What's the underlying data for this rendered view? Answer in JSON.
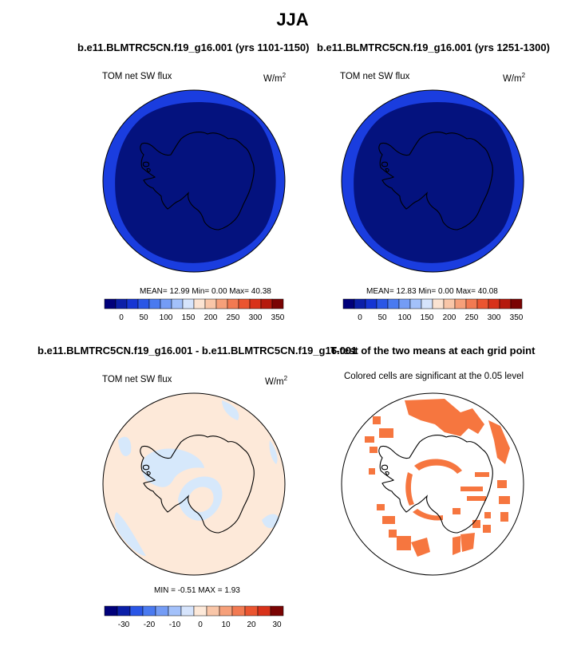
{
  "main_title": "JJA",
  "panels": [
    {
      "title": "b.e11.BLMTRC5CN.f19_g16.001 (yrs 1101-1150)",
      "variable": "TOM net SW flux",
      "units": "W/m",
      "units_sup": "2",
      "stats": "MEAN= 12.99 Min= 0.00 Max= 40.38",
      "colorbar_ticks": [
        "0",
        "50",
        "100",
        "150",
        "200",
        "250",
        "300",
        "350"
      ]
    },
    {
      "title": "b.e11.BLMTRC5CN.f19_g16.001 (yrs 1251-1300)",
      "variable": "TOM net SW flux",
      "units": "W/m",
      "units_sup": "2",
      "stats": "MEAN= 12.83 Min= 0.00 Max= 40.08",
      "colorbar_ticks": [
        "0",
        "50",
        "100",
        "150",
        "200",
        "250",
        "300",
        "350"
      ]
    },
    {
      "title": "b.e11.BLMTRC5CN.f19_g16.001 - b.e11.BLMTRC5CN.f19_g16.001",
      "variable": "TOM net SW flux",
      "units": "W/m",
      "units_sup": "2",
      "stats": "MIN = -0.51 MAX = 1.93",
      "colorbar_ticks": [
        "-30",
        "-20",
        "-10",
        "0",
        "10",
        "20",
        "30"
      ]
    },
    {
      "title": "T-test of the two means at each grid point",
      "subtitle": "Colored cells are significant at the 0.05 level"
    }
  ],
  "colors": {
    "abs_scale": [
      "#00007a",
      "#0b1fa8",
      "#1535d3",
      "#2a56e6",
      "#4a7af0",
      "#749cf5",
      "#a3c1fa",
      "#d6e4fc",
      "#fbe3d2",
      "#f9c6a8",
      "#f6a07a",
      "#f27a52",
      "#eb5530",
      "#d8321a",
      "#b51a0d",
      "#7a0403"
    ],
    "diff_scale": [
      "#00007a",
      "#0b1fa8",
      "#2a56e6",
      "#4a7af0",
      "#749cf5",
      "#a3c1fa",
      "#d6e4fc",
      "#fde9d9",
      "#f9c6a8",
      "#f6a07a",
      "#f27a52",
      "#eb5530",
      "#d8321a",
      "#7a0403"
    ],
    "ocean_abs_outer": "#1a3ddf",
    "ocean_abs_inner": "#04127e",
    "diff_background": "#fde9d9",
    "diff_negative": "#d6e8fb",
    "significance": "#f6763f"
  }
}
